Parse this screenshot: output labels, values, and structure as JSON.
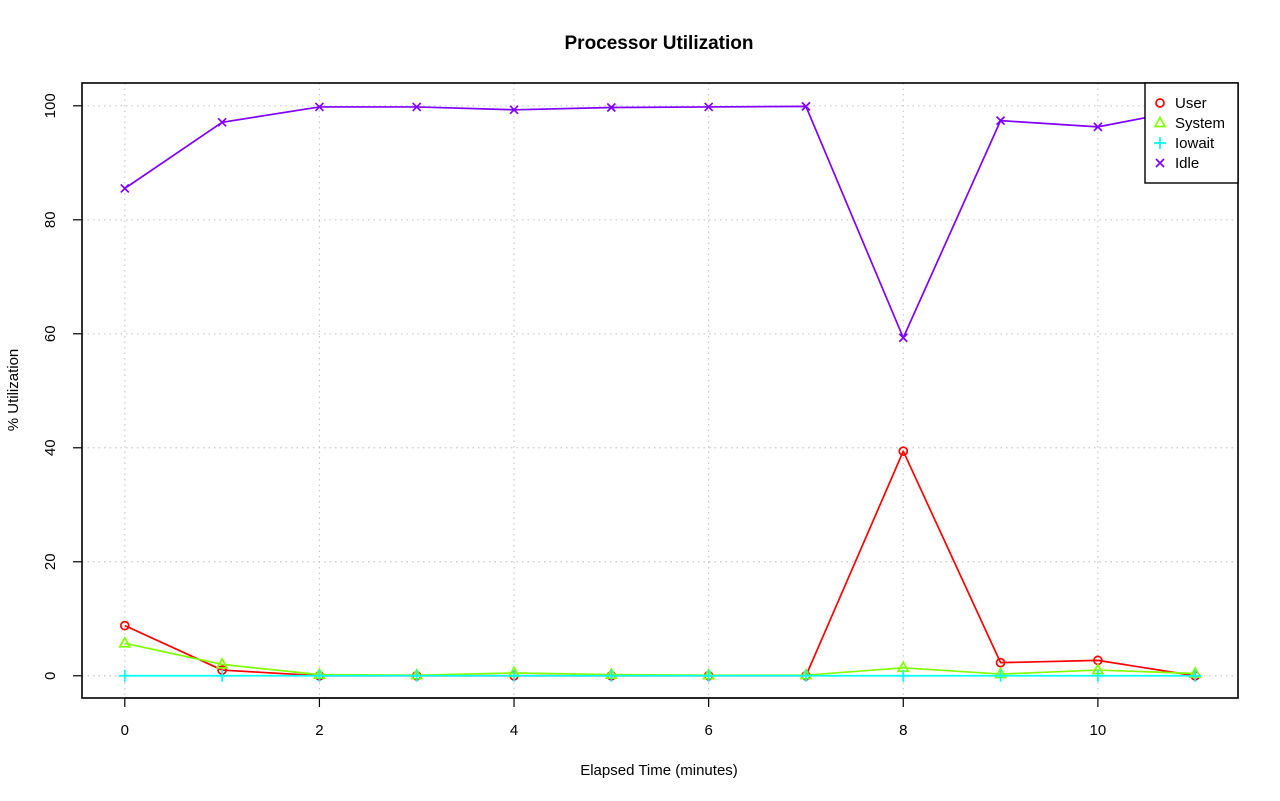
{
  "chart_data": {
    "type": "line",
    "title": "Processor Utilization",
    "xlabel": "Elapsed Time (minutes)",
    "ylabel": "% Utilization",
    "xlim": [
      -0.44,
      11.44
    ],
    "ylim": [
      -3.9,
      104
    ],
    "x_ticks": [
      0,
      2,
      4,
      6,
      8,
      10
    ],
    "y_ticks": [
      0,
      20,
      40,
      60,
      80,
      100
    ],
    "grid": true,
    "legend_position": "top-right",
    "x": [
      0,
      1,
      2,
      3,
      4,
      5,
      6,
      7,
      8,
      9,
      10,
      11
    ],
    "series": [
      {
        "name": "User",
        "color": "#ff0000",
        "marker": "circle",
        "values": [
          8.8,
          1.0,
          0.0,
          0.0,
          0.0,
          0.0,
          0.0,
          0.0,
          39.4,
          2.3,
          2.7,
          0.0
        ]
      },
      {
        "name": "System",
        "color": "#80ff00",
        "marker": "triangle",
        "values": [
          5.7,
          2.0,
          0.2,
          0.1,
          0.5,
          0.2,
          0.1,
          0.1,
          1.4,
          0.3,
          1.0,
          0.4
        ]
      },
      {
        "name": "Iowait",
        "color": "#00ffff",
        "marker": "plus",
        "values": [
          0,
          0,
          0,
          0,
          0,
          0,
          0,
          0,
          0,
          0,
          0,
          0
        ]
      },
      {
        "name": "Idle",
        "color": "#8000ff",
        "marker": "cross",
        "values": [
          85.5,
          97.1,
          99.8,
          99.8,
          99.3,
          99.7,
          99.8,
          99.9,
          59.3,
          97.4,
          96.3,
          99.6
        ]
      }
    ]
  }
}
